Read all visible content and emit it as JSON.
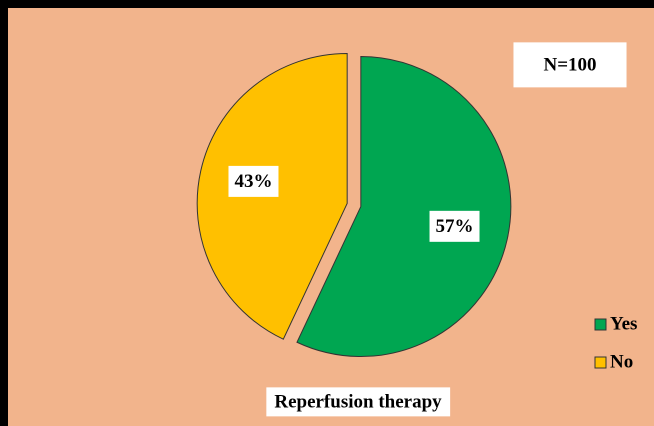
{
  "chart_data": {
    "type": "pie",
    "title": "Reperfusion therapy",
    "annotation": "N=100",
    "categories": [
      "Yes",
      "No"
    ],
    "values": [
      57,
      43
    ],
    "value_labels": [
      "57%",
      "43%"
    ],
    "colors": [
      "#00a651",
      "#ffc000"
    ],
    "legend": "right"
  }
}
